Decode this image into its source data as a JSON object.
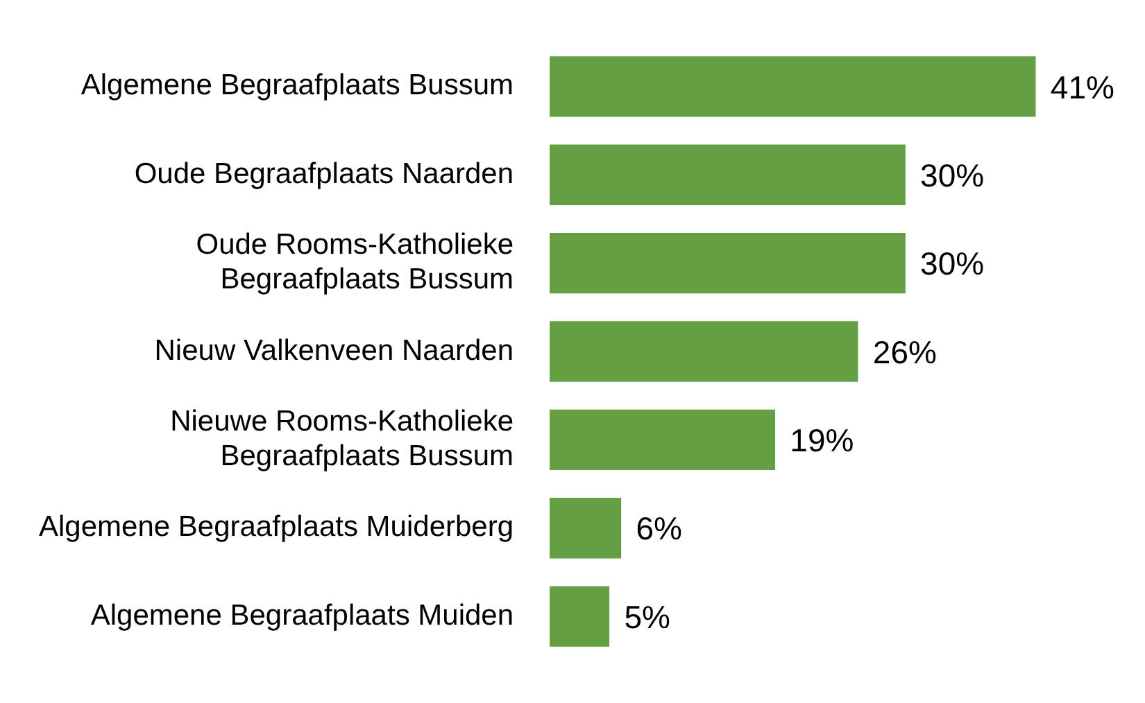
{
  "chart_data": {
    "type": "bar",
    "orientation": "horizontal",
    "categories": [
      "Algemene Begraafplaats Bussum",
      "Oude Begraafplaats Naarden",
      "Oude Rooms-Katholieke\nBegraafplaats Bussum",
      "Nieuw Valkenveen Naarden",
      "Nieuwe Rooms-Katholieke\nBegraafplaats Bussum",
      "Algemene Begraafplaats Muiderberg",
      "Algemene Begraafplaats Muiden"
    ],
    "values": [
      41,
      30,
      30,
      26,
      19,
      6,
      5
    ],
    "value_labels": [
      "41%",
      "30%",
      "30%",
      "26%",
      "19%",
      "6%",
      "5%"
    ],
    "color": "#62a043"
  }
}
